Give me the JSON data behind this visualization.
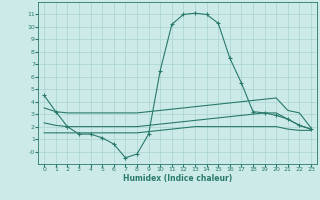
{
  "xlabel": "Humidex (Indice chaleur)",
  "x": [
    0,
    1,
    2,
    3,
    4,
    5,
    6,
    7,
    8,
    9,
    10,
    11,
    12,
    13,
    14,
    15,
    16,
    17,
    18,
    19,
    20,
    21,
    22,
    23
  ],
  "line1": [
    4.5,
    3.2,
    2.0,
    1.4,
    1.4,
    1.1,
    0.6,
    -0.5,
    -0.2,
    1.4,
    6.5,
    10.2,
    11.0,
    11.1,
    11.0,
    10.3,
    7.5,
    5.5,
    3.2,
    3.1,
    2.9,
    2.6,
    2.1,
    1.8
  ],
  "line2": [
    3.5,
    3.2,
    3.1,
    3.1,
    3.1,
    3.1,
    3.1,
    3.1,
    3.1,
    3.2,
    3.3,
    3.4,
    3.5,
    3.6,
    3.7,
    3.8,
    3.9,
    4.0,
    4.1,
    4.2,
    4.3,
    3.3,
    3.1,
    1.9
  ],
  "line3": [
    2.3,
    2.1,
    2.0,
    2.0,
    2.0,
    2.0,
    2.0,
    2.0,
    2.0,
    2.1,
    2.2,
    2.3,
    2.4,
    2.5,
    2.6,
    2.7,
    2.8,
    2.9,
    3.0,
    3.1,
    3.1,
    2.6,
    2.1,
    1.8
  ],
  "line4": [
    1.5,
    1.5,
    1.5,
    1.5,
    1.5,
    1.5,
    1.5,
    1.5,
    1.5,
    1.6,
    1.7,
    1.8,
    1.9,
    2.0,
    2.0,
    2.0,
    2.0,
    2.0,
    2.0,
    2.0,
    2.0,
    1.8,
    1.7,
    1.7
  ],
  "line_color": "#2a7a6b",
  "bg_color": "#cceae8",
  "grid_color": "#aad4d0",
  "ylim": [
    -1,
    12
  ],
  "xlim": [
    -0.5,
    23.5
  ],
  "yticks": [
    0,
    1,
    2,
    3,
    4,
    5,
    6,
    7,
    8,
    9,
    10,
    11
  ],
  "ytick_labels": [
    "-0",
    "1",
    "2",
    "3",
    "4",
    "5",
    "6",
    "7",
    "8",
    "9",
    "10",
    "11"
  ],
  "xticks": [
    0,
    1,
    2,
    3,
    4,
    5,
    6,
    7,
    8,
    9,
    10,
    11,
    12,
    13,
    14,
    15,
    16,
    17,
    18,
    19,
    20,
    21,
    22,
    23
  ]
}
